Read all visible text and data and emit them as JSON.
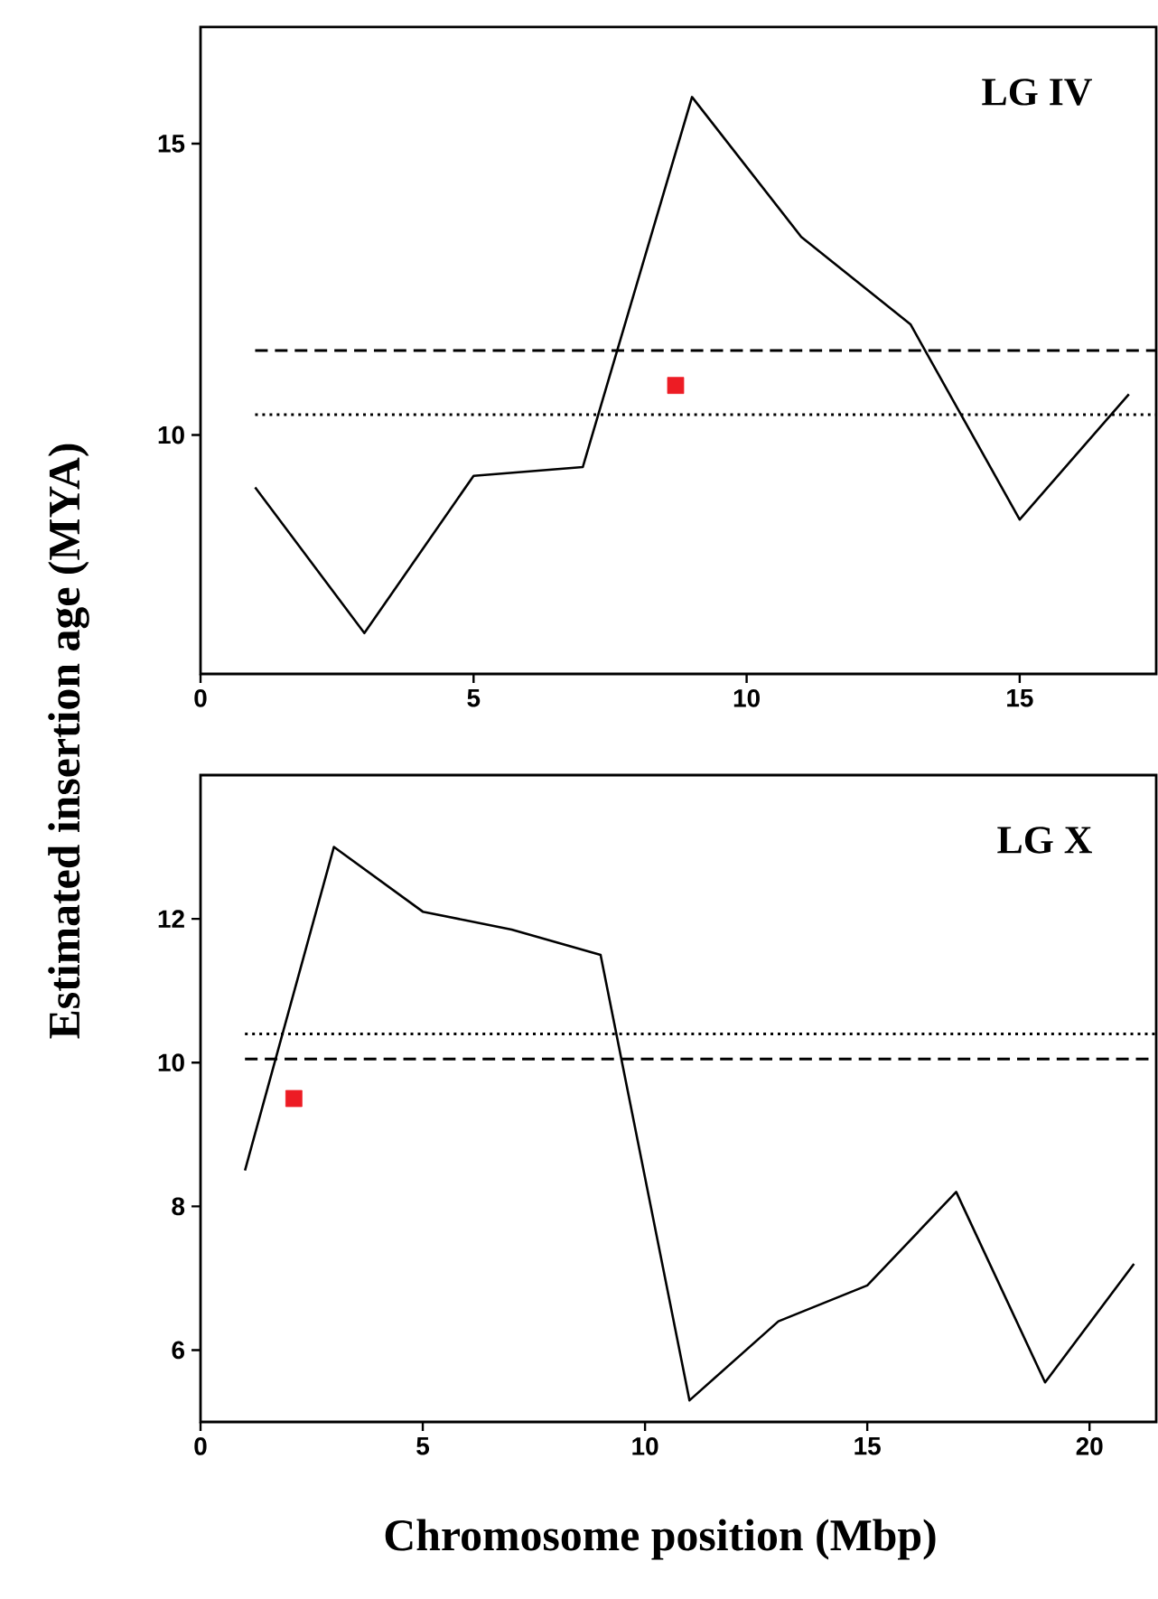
{
  "chart_data": [
    {
      "type": "line",
      "ylabel": "Estimated insertion age (MYA)",
      "annotations": [
        "LG IV"
      ],
      "xlim": [
        0,
        17.5
      ],
      "ylim": [
        5.9,
        17
      ],
      "xticks": [
        0,
        5,
        10,
        15
      ],
      "yticks": [
        10,
        15
      ],
      "series": [
        {
          "color": "#000000",
          "marker": "none",
          "x": [
            1,
            3,
            5,
            7,
            9,
            11,
            13,
            15,
            17
          ],
          "values": [
            9.1,
            6.6,
            9.3,
            9.45,
            15.8,
            13.4,
            11.9,
            8.55,
            10.7
          ]
        },
        {
          "type": "scatter",
          "color": "#ed1c24",
          "marker": "square",
          "x": [
            8.7
          ],
          "values": [
            10.85
          ]
        }
      ],
      "ref_lines": [
        {
          "axis": "y",
          "value": 11.45,
          "line_style": "dashed",
          "color": "#000000"
        },
        {
          "axis": "y",
          "value": 10.35,
          "line_style": "dotted",
          "color": "#000000"
        }
      ]
    },
    {
      "type": "line",
      "xlabel": "Chromosome position (Mbp)",
      "annotations": [
        "LG X"
      ],
      "xlim": [
        0,
        21.5
      ],
      "ylim": [
        5,
        14
      ],
      "xticks": [
        0,
        5,
        10,
        15,
        20
      ],
      "yticks": [
        6,
        8,
        10,
        12
      ],
      "series": [
        {
          "color": "#000000",
          "marker": "none",
          "x": [
            1,
            3,
            5,
            7,
            9,
            11,
            13,
            15,
            17,
            19,
            21
          ],
          "values": [
            8.5,
            13.0,
            12.1,
            11.85,
            11.5,
            5.3,
            6.4,
            6.9,
            8.2,
            5.55,
            7.2
          ]
        },
        {
          "type": "scatter",
          "color": "#ed1c24",
          "marker": "square",
          "x": [
            2.1
          ],
          "values": [
            9.5
          ]
        }
      ],
      "ref_lines": [
        {
          "axis": "y",
          "value": 10.4,
          "line_style": "dotted",
          "color": "#000000"
        },
        {
          "axis": "y",
          "value": 10.05,
          "line_style": "dashed",
          "color": "#000000"
        }
      ]
    }
  ]
}
